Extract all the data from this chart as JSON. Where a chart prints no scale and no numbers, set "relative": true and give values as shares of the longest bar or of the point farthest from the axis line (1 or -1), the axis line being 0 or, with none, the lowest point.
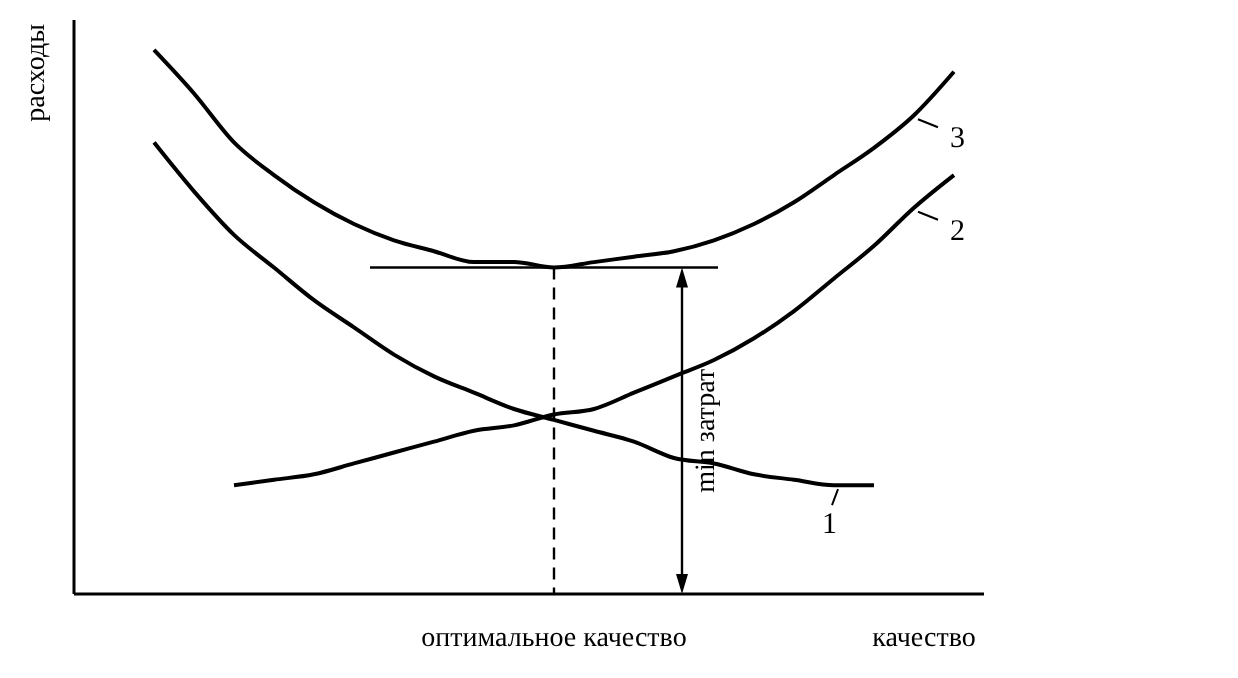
{
  "chart_data": {
    "type": "line",
    "relative": true,
    "xlabel": "качество",
    "ylabel": "расходы",
    "marker": "none",
    "line_style": "solid",
    "grid": false,
    "legend": "right",
    "ref_lines": [
      {
        "axis": "y",
        "value": 0.6
      }
    ],
    "categories": [
      null,
      null,
      null,
      null,
      null,
      null,
      null,
      null,
      null,
      null,
      null,
      null,
      null,
      null,
      null,
      null,
      null,
      null,
      null,
      null,
      null
    ],
    "series": [
      {
        "name": "1",
        "color": "#000000",
        "values": [
          0.83,
          0.74,
          0.66,
          0.6,
          0.54,
          0.49,
          0.44,
          0.4,
          0.37,
          0.34,
          0.32,
          0.3,
          0.28,
          0.25,
          0.24,
          0.22,
          0.21,
          0.2,
          0.2,
          null,
          null
        ]
      },
      {
        "name": "2",
        "color": "#000000",
        "values": [
          null,
          null,
          0.2,
          0.21,
          0.22,
          0.24,
          0.26,
          0.28,
          0.3,
          0.31,
          0.33,
          0.34,
          0.37,
          0.4,
          0.43,
          0.47,
          0.52,
          0.58,
          0.64,
          0.71,
          0.77
        ]
      },
      {
        "name": "3",
        "color": "#000000",
        "values": [
          1,
          0.92,
          0.83,
          0.77,
          0.72,
          0.68,
          0.65,
          0.63,
          0.61,
          0.61,
          0.6,
          0.61,
          0.62,
          0.63,
          0.65,
          0.68,
          0.72,
          0.77,
          0.82,
          0.88,
          0.96
        ]
      }
    ],
    "annotations": [
      "оптимальное качество",
      "min затрат"
    ]
  }
}
